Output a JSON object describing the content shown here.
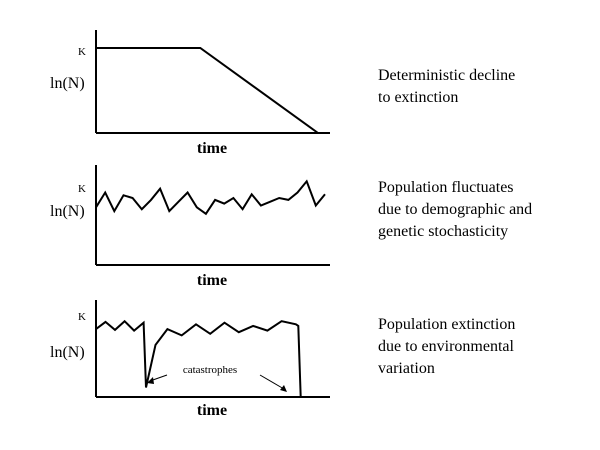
{
  "figure": {
    "background": "#ffffff",
    "ink": "#000000"
  },
  "chart_data": [
    {
      "type": "line",
      "k_label": "K",
      "ylabel": "ln(N)",
      "xlabel": "time",
      "description": [
        "Deterministic decline",
        "to extinction"
      ],
      "ylim": [
        0,
        1
      ],
      "xlim": [
        0,
        1
      ],
      "series": [
        {
          "x": [
            0.0,
            0.47,
            1.0
          ],
          "y": [
            1.0,
            1.0,
            0.0
          ]
        }
      ]
    },
    {
      "type": "line",
      "k_label": "K",
      "ylabel": "ln(N)",
      "xlabel": "time",
      "description": [
        "Population fluctuates",
        "due to demographic and",
        "genetic stochasticity"
      ],
      "ylim": [
        0,
        1
      ],
      "xlim": [
        0,
        1
      ],
      "series": [
        {
          "x": [
            0.0,
            0.04,
            0.08,
            0.12,
            0.16,
            0.2,
            0.24,
            0.28,
            0.32,
            0.36,
            0.4,
            0.44,
            0.48,
            0.52,
            0.56,
            0.6,
            0.64,
            0.68,
            0.72,
            0.76,
            0.8,
            0.84,
            0.88,
            0.92,
            0.96,
            1.0
          ],
          "y": [
            0.62,
            0.78,
            0.58,
            0.75,
            0.72,
            0.6,
            0.7,
            0.82,
            0.58,
            0.68,
            0.78,
            0.62,
            0.55,
            0.7,
            0.66,
            0.72,
            0.6,
            0.76,
            0.64,
            0.68,
            0.72,
            0.7,
            0.78,
            0.9,
            0.64,
            0.76
          ]
        }
      ]
    },
    {
      "type": "line",
      "k_label": "K",
      "ylabel": "ln(N)",
      "xlabel": "time",
      "description": [
        "Population extinction",
        "due to environmental",
        "variation"
      ],
      "annotation": "catastrophes",
      "ylim": [
        0,
        1
      ],
      "xlim": [
        0,
        1
      ],
      "series": [
        {
          "x": [
            0.0,
            0.04,
            0.08,
            0.12,
            0.16,
            0.2,
            0.21,
            0.25,
            0.3,
            0.36,
            0.42,
            0.48,
            0.54,
            0.6,
            0.66,
            0.72,
            0.78,
            0.84,
            0.85,
            0.86
          ],
          "y": [
            0.86,
            0.95,
            0.85,
            0.96,
            0.84,
            0.94,
            0.12,
            0.66,
            0.86,
            0.78,
            0.92,
            0.8,
            0.94,
            0.82,
            0.9,
            0.84,
            0.96,
            0.92,
            0.9,
            0.0
          ]
        }
      ]
    }
  ]
}
